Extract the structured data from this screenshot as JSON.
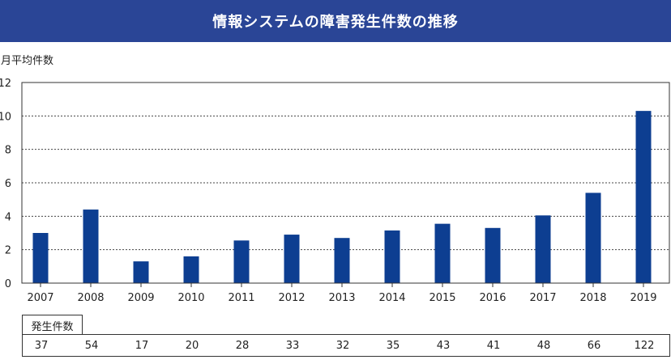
{
  "header": {
    "title": "情報システムの障害発生件数の推移"
  },
  "chart_data": {
    "type": "bar",
    "title": "情報システムの障害発生件数の推移",
    "ylabel": "月平均件数",
    "xlabel": "",
    "ylim": [
      0,
      12
    ],
    "yticks": [
      0,
      2,
      4,
      6,
      8,
      10,
      12
    ],
    "grid": "horizontal dashed",
    "bar_color": "#0d3e91",
    "categories": [
      "2007",
      "2008",
      "2009",
      "2010",
      "2011",
      "2012",
      "2013",
      "2014",
      "2015",
      "2016",
      "2017",
      "2018",
      "2019"
    ],
    "values": [
      3.0,
      4.4,
      1.3,
      1.6,
      2.55,
      2.9,
      2.7,
      3.15,
      3.55,
      3.3,
      4.05,
      5.4,
      10.3
    ]
  },
  "table": {
    "label": "発生件数",
    "counts": [
      "37",
      "54",
      "17",
      "20",
      "28",
      "33",
      "32",
      "35",
      "43",
      "41",
      "48",
      "66",
      "122"
    ]
  }
}
